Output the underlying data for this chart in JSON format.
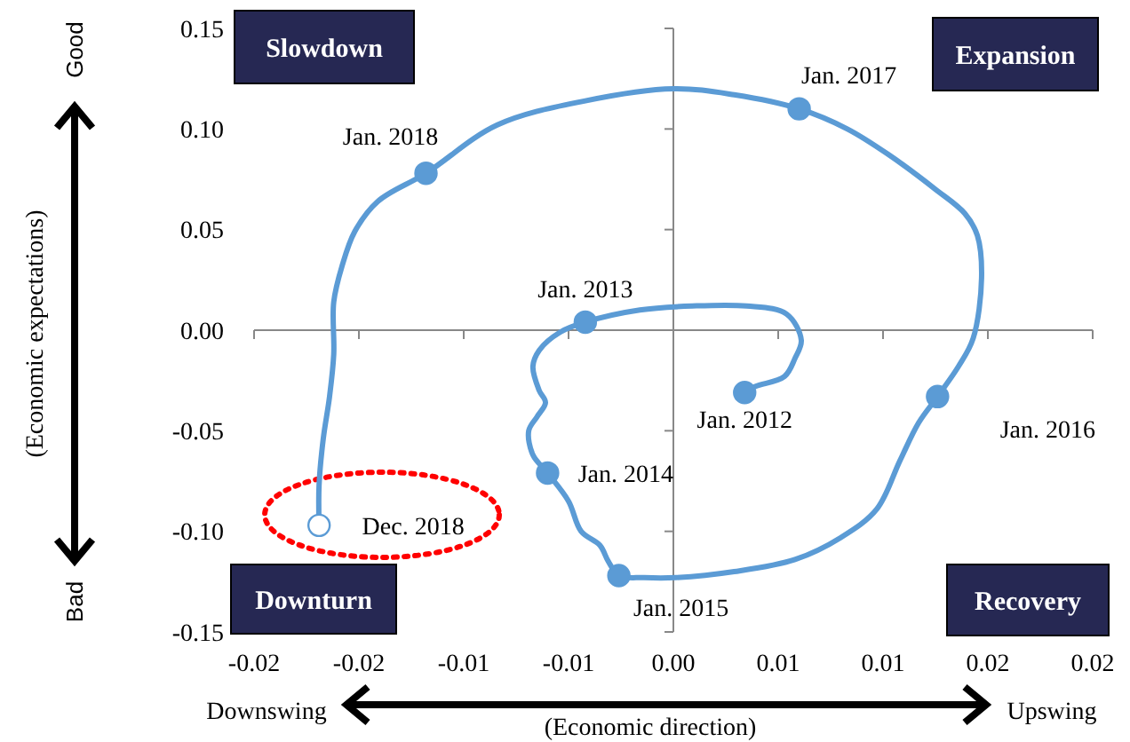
{
  "chart_data": {
    "type": "line",
    "xlabel": "(Economic direction)",
    "ylabel": "(Economic expectations)",
    "xlim": [
      -0.02,
      0.02
    ],
    "ylim": [
      -0.15,
      0.15
    ],
    "xticks": [
      {
        "value": -0.02,
        "label": "-0.02"
      },
      {
        "value": -0.015,
        "label": "-0.02"
      },
      {
        "value": -0.01,
        "label": "-0.01"
      },
      {
        "value": -0.005,
        "label": "-0.01"
      },
      {
        "value": 0,
        "label": "0.00"
      },
      {
        "value": 0.005,
        "label": "0.01"
      },
      {
        "value": 0.01,
        "label": "0.01"
      },
      {
        "value": 0.015,
        "label": "0.02"
      },
      {
        "value": 0.02,
        "label": "0.02"
      }
    ],
    "yticks": [
      {
        "value": -0.15,
        "label": "-0.15"
      },
      {
        "value": -0.1,
        "label": "-0.10"
      },
      {
        "value": -0.05,
        "label": "-0.05"
      },
      {
        "value": 0,
        "label": "0.00"
      },
      {
        "value": 0.05,
        "label": "0.05"
      },
      {
        "value": 0.1,
        "label": "0.10"
      },
      {
        "value": 0.15,
        "label": "0.15"
      }
    ],
    "series": [
      {
        "color": "#5b9bd5",
        "x": [
          0.0034,
          0.0039,
          0.0053,
          0.0058,
          0.0061,
          0.0054,
          0.0035,
          0.0009,
          -0.0016,
          -0.0042,
          -0.0054,
          -0.0064,
          -0.0067,
          -0.0064,
          -0.0061,
          -0.0065,
          -0.0069,
          -0.0067,
          -0.006,
          -0.005,
          -0.0044,
          -0.0035,
          -0.0031,
          -0.0026,
          -0.0014,
          0.0001,
          0.0029,
          0.0058,
          0.008,
          0.0097,
          0.0108,
          0.0117,
          0.0126,
          0.0136,
          0.0143,
          0.0147,
          0.0145,
          0.0139,
          0.0125,
          0.0103,
          0.0083,
          0.006,
          0.0029,
          0,
          -0.0042,
          -0.0084,
          -0.0118,
          -0.0141,
          -0.0152,
          -0.0158,
          -0.0162,
          -0.0162,
          -0.0164,
          -0.0167,
          -0.0169,
          -0.0169
        ],
        "values": [
          -0.031,
          -0.028,
          -0.023,
          -0.014,
          -0.005,
          0.008,
          0.012,
          0.012,
          0.01,
          0.004,
          -0.001,
          -0.01,
          -0.018,
          -0.03,
          -0.036,
          -0.043,
          -0.05,
          -0.062,
          -0.071,
          -0.085,
          -0.1,
          -0.107,
          -0.115,
          -0.122,
          -0.123,
          -0.123,
          -0.12,
          -0.114,
          -0.103,
          -0.089,
          -0.065,
          -0.046,
          -0.033,
          -0.018,
          -0.004,
          0.026,
          0.047,
          0.058,
          0.07,
          0.087,
          0.1,
          0.11,
          0.117,
          0.12,
          0.114,
          0.102,
          0.078,
          0.064,
          0.049,
          0.032,
          0.014,
          -0.012,
          -0.033,
          -0.054,
          -0.077,
          -0.097
        ]
      },
      {
        "type": "scatter",
        "color": "#5b9bd5",
        "x": [
          0.0034,
          -0.0042,
          -0.006,
          -0.0026,
          0.0126,
          0.006,
          -0.0118
        ],
        "values": [
          -0.031,
          0.004,
          -0.071,
          -0.122,
          -0.033,
          0.11,
          0.078
        ]
      },
      {
        "type": "scatter",
        "color": "#ffffff",
        "x": [
          -0.0169
        ],
        "values": [
          -0.097
        ]
      }
    ],
    "annotations": [
      {
        "text": "Jan. 2012",
        "x": 0.0034,
        "y": -0.031
      },
      {
        "text": "Jan. 2013",
        "x": -0.0042,
        "y": 0.004
      },
      {
        "text": "Jan. 2014",
        "x": -0.006,
        "y": -0.071
      },
      {
        "text": "Jan. 2015",
        "x": -0.0026,
        "y": -0.122
      },
      {
        "text": "Jan. 2016",
        "x": 0.0126,
        "y": -0.033
      },
      {
        "text": "Jan. 2017",
        "x": 0.006,
        "y": 0.11
      },
      {
        "text": "Jan. 2018",
        "x": -0.0118,
        "y": 0.078
      },
      {
        "text": "Dec. 2018",
        "x": -0.0169,
        "y": -0.097
      },
      "Slowdown",
      "Expansion",
      "Downturn",
      "Recovery",
      "Good",
      "Bad",
      "Downswing",
      "Upswing"
    ]
  }
}
